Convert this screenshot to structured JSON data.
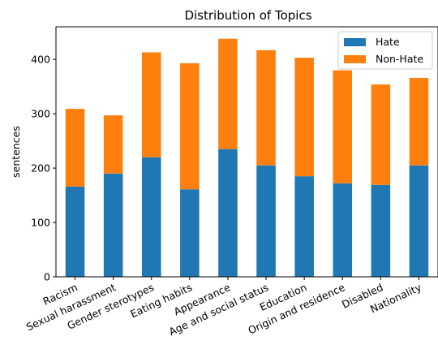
{
  "chart_data": {
    "type": "bar",
    "stacked": true,
    "title": "Distribution of Topics",
    "xlabel": "",
    "ylabel": "sentences",
    "ylim": [
      0,
      460
    ],
    "yticks": [
      0,
      100,
      200,
      300,
      400
    ],
    "categories": [
      "Racism",
      "Sexual harassment",
      "Gender sterotypes",
      "Eating habits",
      "Appearance",
      "Age and social status",
      "Education",
      "Origin and residence",
      "Disabled",
      "Nationality"
    ],
    "series": [
      {
        "name": "Hate",
        "color": "#1f77b4",
        "values": [
          166,
          190,
          220,
          161,
          235,
          205,
          185,
          172,
          169,
          205
        ]
      },
      {
        "name": "Non-Hate",
        "color": "#ff7f0e",
        "values": [
          143,
          107,
          193,
          232,
          203,
          212,
          218,
          208,
          185,
          161
        ]
      }
    ],
    "legend": {
      "position": "top-right"
    },
    "grid": false
  }
}
